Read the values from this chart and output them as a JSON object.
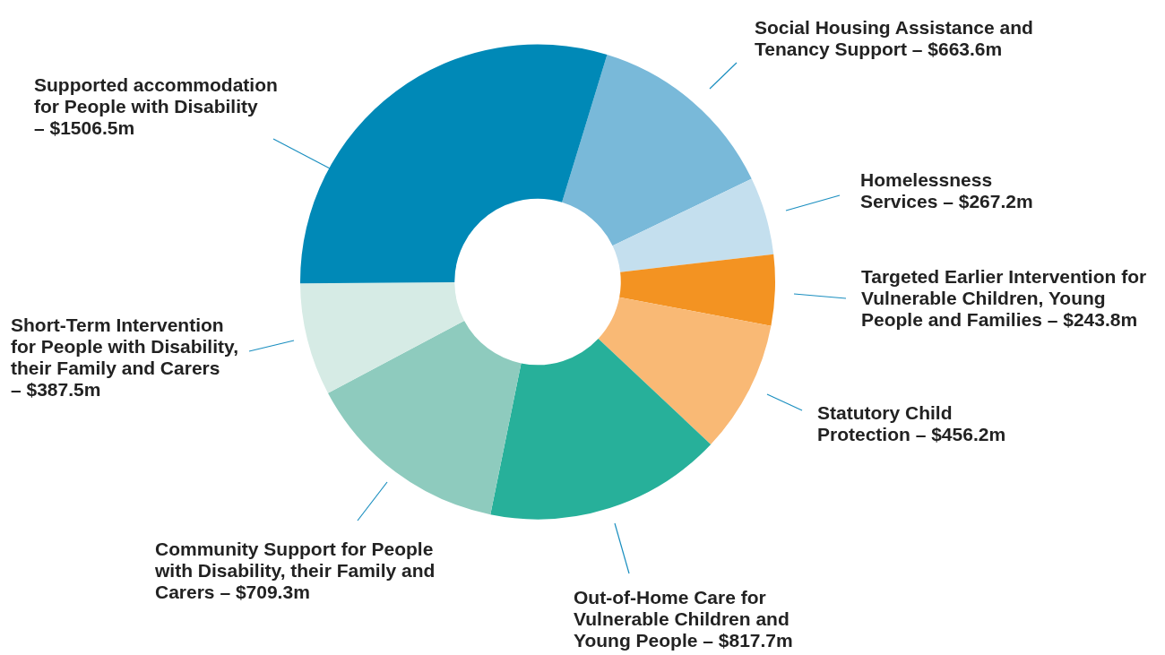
{
  "chart_data": {
    "type": "donut",
    "categories": [
      "Social Housing Assistance and Tenancy Support –",
      "Homelessness Services –",
      "Targeted Earlier Intervention for Vulnerable Children, Young People and Families –",
      "Statutory Child Protection –",
      "Out-of-Home Care for Vulnerable Children and Young People –",
      "Community Support for People with Disability, their Family and Carers –",
      "Short-Term Intervention for People with Disability, their Family and Carers –",
      "Supported accommodation for People with Disability –"
    ],
    "values": [
      663.6,
      267.2,
      243.8,
      456.2,
      817.7,
      709.3,
      387.5,
      1506.5
    ],
    "value_labels": [
      "$663.6m",
      "$267.2m",
      "$243.8m",
      "$456.2m",
      "$817.7m",
      "$709.3m",
      "$387.5m",
      "$1506.5m"
    ],
    "colors": [
      "#79b9d9",
      "#c4dfee",
      "#f39322",
      "#f9b975",
      "#27b09a",
      "#8ecbbe",
      "#d6ebe5",
      "#0089b7"
    ]
  }
}
